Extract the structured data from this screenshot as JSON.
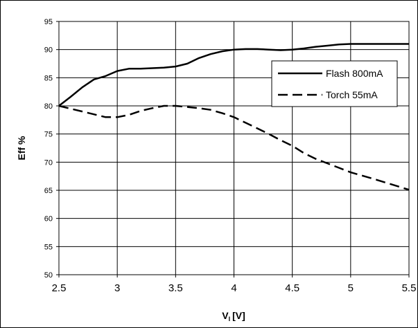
{
  "chart_data": {
    "type": "line",
    "title": "",
    "xlabel": "V",
    "xlabel_sub": "I",
    "xlabel_unit": "[V]",
    "ylabel": "Eff %",
    "xlim": [
      2.5,
      5.5
    ],
    "ylim": [
      50,
      95
    ],
    "x_ticks": [
      "2.5",
      "3",
      "3.5",
      "4",
      "4.5",
      "5",
      "5.5"
    ],
    "y_ticks": [
      "50",
      "55",
      "60",
      "65",
      "70",
      "75",
      "80",
      "85",
      "90",
      "95"
    ],
    "grid": true,
    "legend_position": "right",
    "series": [
      {
        "name": "Flash 800mA",
        "style": "solid",
        "color": "#000000",
        "x": [
          2.5,
          2.6,
          2.7,
          2.8,
          2.9,
          3.0,
          3.1,
          3.2,
          3.3,
          3.4,
          3.5,
          3.6,
          3.7,
          3.8,
          3.9,
          4.0,
          4.1,
          4.2,
          4.3,
          4.4,
          4.5,
          4.6,
          4.7,
          4.8,
          4.9,
          5.0,
          5.2,
          5.5
        ],
        "y": [
          80,
          81.6,
          83.3,
          84.7,
          85.3,
          86.2,
          86.6,
          86.6,
          86.7,
          86.8,
          87.0,
          87.5,
          88.5,
          89.2,
          89.7,
          90.0,
          90.1,
          90.1,
          90.0,
          89.9,
          90.0,
          90.2,
          90.5,
          90.7,
          90.9,
          91.0,
          91.0,
          91.0
        ]
      },
      {
        "name": "Torch 55mA",
        "style": "dashed",
        "color": "#000000",
        "x": [
          2.5,
          2.6,
          2.7,
          2.8,
          2.9,
          3.0,
          3.1,
          3.2,
          3.3,
          3.4,
          3.5,
          3.6,
          3.7,
          3.8,
          3.9,
          4.0,
          4.1,
          4.2,
          4.3,
          4.4,
          4.5,
          4.6,
          4.7,
          4.8,
          4.9,
          5.0,
          5.2,
          5.5
        ],
        "y": [
          80,
          79.5,
          79.0,
          78.5,
          78.0,
          78.0,
          78.4,
          79.1,
          79.6,
          80.0,
          80.0,
          79.8,
          79.6,
          79.3,
          78.7,
          78.0,
          77.0,
          76.0,
          75.0,
          73.9,
          72.9,
          71.6,
          70.6,
          69.8,
          69.0,
          68.2,
          67.0,
          65.1
        ]
      }
    ]
  }
}
